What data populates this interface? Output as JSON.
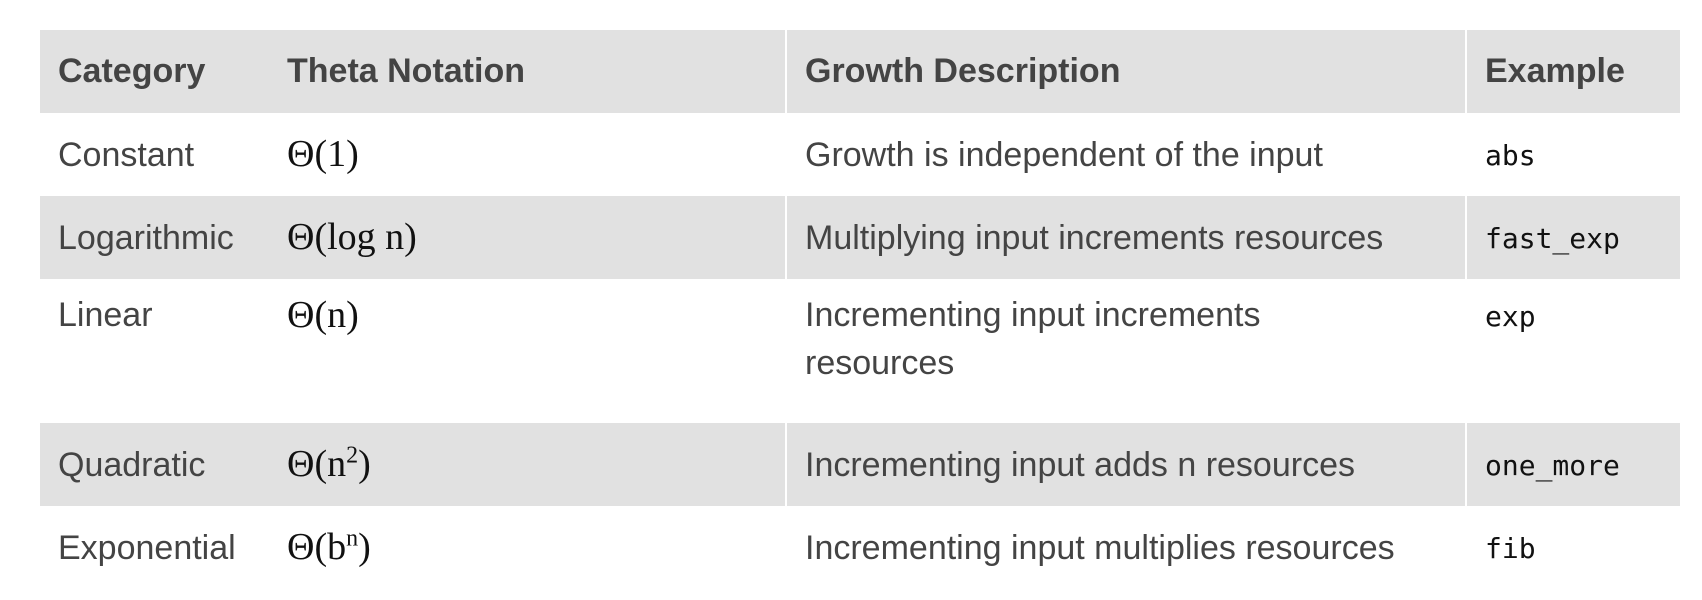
{
  "table": {
    "headers": {
      "category": "Category",
      "theta": "Theta Notation",
      "description": "Growth Description",
      "example": "Example"
    },
    "rows": [
      {
        "category": "Constant",
        "theta_prefix": "Θ(1",
        "theta_sup": "",
        "theta_suffix": ")",
        "description": "Growth is independent of the input",
        "example": "abs"
      },
      {
        "category": "Logarithmic",
        "theta_prefix": "Θ(log n",
        "theta_sup": "",
        "theta_suffix": ")",
        "description": "Multiplying input increments resources",
        "example": "fast_exp"
      },
      {
        "category": "Linear",
        "theta_prefix": "Θ(n",
        "theta_sup": "",
        "theta_suffix": ")",
        "description": "Incrementing input increments resources",
        "example": "exp"
      },
      {
        "category": "Quadratic",
        "theta_prefix": "Θ(n",
        "theta_sup": "2",
        "theta_suffix": ")",
        "description": "Incrementing input adds n resources",
        "example": "one_more"
      },
      {
        "category": "Exponential",
        "theta_prefix": "Θ(b",
        "theta_sup": "n",
        "theta_suffix": ")",
        "description": "Incrementing input multiplies resources",
        "example": "fib"
      }
    ]
  },
  "colors": {
    "header_bg": "#e1e1e1",
    "stripe_bg": "#e1e1e1",
    "text": "#444444"
  }
}
